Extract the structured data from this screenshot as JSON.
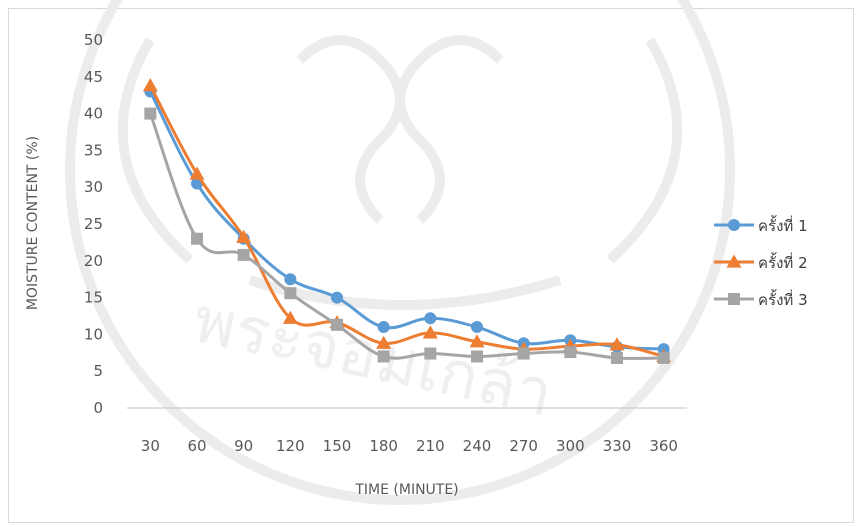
{
  "chart_data": {
    "type": "line",
    "title": "",
    "xlabel": "TIME (MINUTE)",
    "ylabel": "MOISTURE CONTENT (%)",
    "categories": [
      "30",
      "60",
      "90",
      "120",
      "150",
      "180",
      "210",
      "240",
      "270",
      "300",
      "330",
      "360"
    ],
    "ylim": [
      0,
      50
    ],
    "yticks": [
      0,
      5,
      10,
      15,
      20,
      25,
      30,
      35,
      40,
      45,
      50
    ],
    "grid": false,
    "legend_position": "right",
    "smooth": true,
    "series": [
      {
        "name": "ครั้งที่ 1",
        "marker": "circle",
        "color": "#5B9BD5",
        "values": [
          43,
          30.5,
          23,
          17.5,
          15,
          11,
          12.2,
          11,
          8.8,
          9.2,
          8.3,
          8
        ]
      },
      {
        "name": "ครั้งที่ 2",
        "marker": "triangle",
        "color": "#ED7D31",
        "values": [
          43.8,
          31.8,
          23.2,
          12.2,
          11.6,
          8.8,
          10.2,
          9,
          8,
          8.4,
          8.6,
          7
        ]
      },
      {
        "name": "ครั้งที่ 3",
        "marker": "square",
        "color": "#A5A5A5",
        "values": [
          40,
          23,
          20.8,
          15.6,
          11.3,
          7,
          7.4,
          7,
          7.4,
          7.6,
          6.8,
          6.8
        ]
      }
    ]
  }
}
